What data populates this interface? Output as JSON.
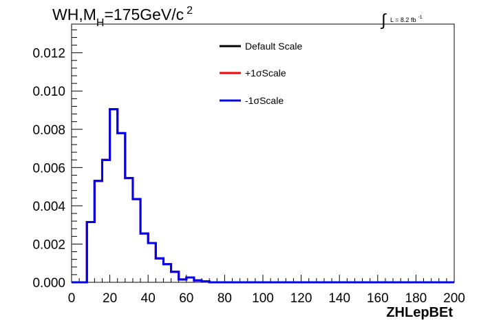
{
  "chart_data": {
    "type": "line",
    "title": {
      "main": "WH,M",
      "subscript": "H",
      "rest": "=175GeV/c",
      "superscript": "2"
    },
    "lumi": {
      "integral": "∫",
      "text": "L = 8.2 fb",
      "superscript": "-1"
    },
    "xlabel": "ZHLepBEt",
    "ylabel": "",
    "xlim": [
      0,
      200
    ],
    "ylim": [
      0,
      0.0135
    ],
    "x_ticks": [
      "0",
      "20",
      "40",
      "60",
      "80",
      "100",
      "120",
      "140",
      "160",
      "180",
      "200"
    ],
    "x_tick_values": [
      0,
      20,
      40,
      60,
      80,
      100,
      120,
      140,
      160,
      180,
      200
    ],
    "y_ticks": [
      "0.000",
      "0.002",
      "0.004",
      "0.006",
      "0.008",
      "0.010",
      "0.012"
    ],
    "y_tick_values": [
      0,
      0.002,
      0.004,
      0.006,
      0.008,
      0.01,
      0.012
    ],
    "grid": false,
    "legend_position": "top-center",
    "bin_edges": [
      0,
      4,
      8,
      12,
      16,
      20,
      24,
      28,
      32,
      36,
      40,
      44,
      48,
      52,
      56,
      60,
      64,
      68,
      72,
      76,
      80,
      84,
      88,
      92,
      96,
      100,
      104,
      108,
      112,
      116,
      120,
      124,
      128,
      132,
      136,
      140,
      144,
      148,
      152,
      156,
      160,
      164,
      168,
      172,
      176,
      180,
      184,
      188,
      192,
      196,
      200
    ],
    "series": [
      {
        "name": "Default Scale",
        "color": "#000000",
        "values": [
          0,
          0,
          0.00315,
          0.0053,
          0.0064,
          0.00905,
          0.0078,
          0.00545,
          0.00435,
          0.00255,
          0.00205,
          0.00125,
          0.00095,
          0.00055,
          0.00015,
          0.00025,
          0.0001,
          5e-05,
          0,
          0,
          0,
          0,
          0,
          0,
          0,
          0,
          0,
          0,
          0,
          0,
          0,
          0,
          0,
          0,
          0,
          0,
          0,
          0,
          0,
          0,
          0,
          0,
          0,
          0,
          0,
          0,
          0,
          0,
          0,
          0
        ]
      },
      {
        "name": "+1σScale",
        "color": "#ff0000",
        "values": [
          0,
          0,
          0.00315,
          0.0053,
          0.0064,
          0.00905,
          0.0078,
          0.00545,
          0.00435,
          0.00255,
          0.00205,
          0.00125,
          0.00095,
          0.00055,
          0.00015,
          0.00025,
          0.0001,
          5e-05,
          0,
          0,
          0,
          0,
          0,
          0,
          0,
          0,
          0,
          0,
          0,
          0,
          0,
          0,
          0,
          0,
          0,
          0,
          0,
          0,
          0,
          0,
          0,
          0,
          0,
          0,
          0,
          0,
          0,
          0,
          0,
          0
        ]
      },
      {
        "name": "-1σScale",
        "color": "#0000ee",
        "values": [
          0,
          0,
          0.00315,
          0.0053,
          0.0064,
          0.00905,
          0.0078,
          0.00545,
          0.00435,
          0.00255,
          0.00205,
          0.00125,
          0.00095,
          0.00055,
          0.00015,
          0.00025,
          0.0001,
          5e-05,
          0,
          0,
          0,
          0,
          0,
          0,
          0,
          0,
          0,
          0,
          0,
          0,
          0,
          0,
          0,
          0,
          0,
          0,
          0,
          0,
          0,
          0,
          0,
          0,
          0,
          0,
          0,
          0,
          0,
          0,
          0,
          0
        ]
      }
    ]
  }
}
